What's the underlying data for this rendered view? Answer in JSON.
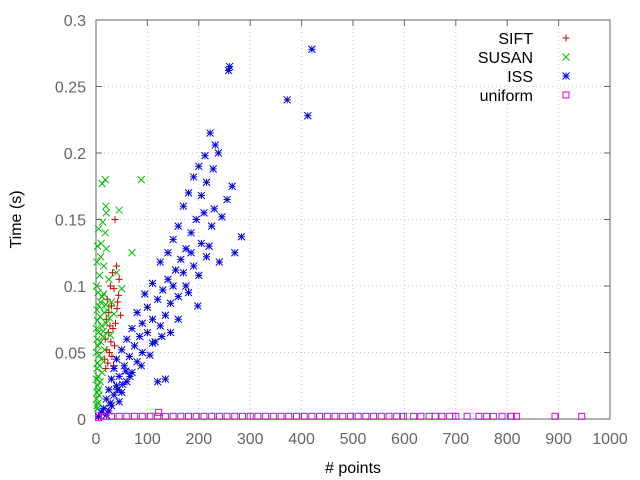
{
  "chart_data": {
    "type": "scatter",
    "xlabel": "# points",
    "ylabel": "Time (s)",
    "xlim": [
      0,
      1000
    ],
    "ylim": [
      0,
      0.3
    ],
    "xticks": [
      "0",
      "100",
      "200",
      "300",
      "400",
      "500",
      "600",
      "700",
      "800",
      "900",
      "1000"
    ],
    "yticks": [
      "0",
      "0.05",
      "0.1",
      "0.15",
      "0.2",
      "0.25",
      "0.3"
    ],
    "grid": true,
    "legend_position": "top-right",
    "series": [
      {
        "name": "SIFT",
        "marker": "plus",
        "color": "#d00000",
        "points": [
          [
            37,
            0.15
          ],
          [
            40,
            0.115
          ],
          [
            32,
            0.11
          ],
          [
            45,
            0.105
          ],
          [
            28,
            0.1
          ],
          [
            35,
            0.098
          ],
          [
            22,
            0.09
          ],
          [
            42,
            0.088
          ],
          [
            30,
            0.085
          ],
          [
            25,
            0.08
          ],
          [
            48,
            0.078
          ],
          [
            20,
            0.075
          ],
          [
            38,
            0.072
          ],
          [
            27,
            0.07
          ],
          [
            33,
            0.068
          ],
          [
            24,
            0.065
          ],
          [
            18,
            0.06
          ],
          [
            29,
            0.058
          ],
          [
            36,
            0.055
          ],
          [
            21,
            0.052
          ],
          [
            26,
            0.05
          ],
          [
            31,
            0.047
          ],
          [
            17,
            0.045
          ],
          [
            23,
            0.042
          ],
          [
            34,
            0.04
          ],
          [
            19,
            0.038
          ],
          [
            44,
            0.093
          ],
          [
            41,
            0.083
          ]
        ]
      },
      {
        "name": "SUSAN",
        "marker": "cross",
        "color": "#00c000",
        "points": [
          [
            88,
            0.18
          ],
          [
            18,
            0.18
          ],
          [
            12,
            0.177
          ],
          [
            19,
            0.16
          ],
          [
            45,
            0.157
          ],
          [
            20,
            0.155
          ],
          [
            13,
            0.148
          ],
          [
            5,
            0.143
          ],
          [
            10,
            0.132
          ],
          [
            3,
            0.13
          ],
          [
            18,
            0.14
          ],
          [
            20,
            0.128
          ],
          [
            70,
            0.125
          ],
          [
            9,
            0.122
          ],
          [
            2,
            0.118
          ],
          [
            15,
            0.115
          ],
          [
            40,
            0.11
          ],
          [
            7,
            0.108
          ],
          [
            25,
            0.105
          ],
          [
            1,
            0.1
          ],
          [
            50,
            0.098
          ],
          [
            4,
            0.095
          ],
          [
            12,
            0.092
          ],
          [
            30,
            0.088
          ],
          [
            6,
            0.085
          ],
          [
            2,
            0.082
          ],
          [
            16,
            0.08
          ],
          [
            8,
            0.077
          ],
          [
            3,
            0.074
          ],
          [
            20,
            0.072
          ],
          [
            11,
            0.07
          ],
          [
            1,
            0.068
          ],
          [
            5,
            0.065
          ],
          [
            14,
            0.062
          ],
          [
            2,
            0.06
          ],
          [
            9,
            0.058
          ],
          [
            4,
            0.055
          ],
          [
            17,
            0.052
          ],
          [
            1,
            0.05
          ],
          [
            6,
            0.048
          ],
          [
            10,
            0.045
          ],
          [
            3,
            0.042
          ],
          [
            7,
            0.04
          ],
          [
            2,
            0.038
          ],
          [
            12,
            0.035
          ],
          [
            4,
            0.032
          ],
          [
            1,
            0.03
          ],
          [
            8,
            0.028
          ],
          [
            3,
            0.025
          ],
          [
            5,
            0.022
          ],
          [
            2,
            0.02
          ],
          [
            6,
            0.018
          ],
          [
            1,
            0.015
          ],
          [
            4,
            0.012
          ],
          [
            2,
            0.01
          ],
          [
            3,
            0.008
          ],
          [
            22,
            0.082
          ],
          [
            26,
            0.076
          ],
          [
            14,
            0.066
          ],
          [
            35,
            0.079
          ],
          [
            28,
            0.063
          ],
          [
            9,
            0.088
          ],
          [
            15,
            0.094
          ],
          [
            19,
            0.086
          ]
        ]
      },
      {
        "name": "ISS",
        "marker": "star",
        "color": "#0000e0",
        "points": [
          [
            420,
            0.278
          ],
          [
            260,
            0.265
          ],
          [
            258,
            0.262
          ],
          [
            372,
            0.24
          ],
          [
            412,
            0.228
          ],
          [
            222,
            0.215
          ],
          [
            238,
            0.2
          ],
          [
            232,
            0.206
          ],
          [
            212,
            0.198
          ],
          [
            200,
            0.19
          ],
          [
            190,
            0.182
          ],
          [
            265,
            0.175
          ],
          [
            180,
            0.17
          ],
          [
            255,
            0.165
          ],
          [
            170,
            0.16
          ],
          [
            230,
            0.158
          ],
          [
            210,
            0.155
          ],
          [
            195,
            0.15
          ],
          [
            160,
            0.145
          ],
          [
            185,
            0.14
          ],
          [
            283,
            0.137
          ],
          [
            150,
            0.135
          ],
          [
            205,
            0.132
          ],
          [
            175,
            0.128
          ],
          [
            140,
            0.125
          ],
          [
            215,
            0.122
          ],
          [
            165,
            0.12
          ],
          [
            125,
            0.118
          ],
          [
            190,
            0.115
          ],
          [
            155,
            0.112
          ],
          [
            200,
            0.108
          ],
          [
            140,
            0.105
          ],
          [
            110,
            0.102
          ],
          [
            175,
            0.1
          ],
          [
            130,
            0.097
          ],
          [
            95,
            0.094
          ],
          [
            160,
            0.092
          ],
          [
            120,
            0.09
          ],
          [
            145,
            0.087
          ],
          [
            100,
            0.084
          ],
          [
            80,
            0.08
          ],
          [
            135,
            0.078
          ],
          [
            110,
            0.075
          ],
          [
            90,
            0.072
          ],
          [
            125,
            0.07
          ],
          [
            70,
            0.068
          ],
          [
            100,
            0.065
          ],
          [
            85,
            0.062
          ],
          [
            60,
            0.06
          ],
          [
            110,
            0.057
          ],
          [
            75,
            0.055
          ],
          [
            50,
            0.052
          ],
          [
            90,
            0.05
          ],
          [
            65,
            0.047
          ],
          [
            40,
            0.045
          ],
          [
            80,
            0.043
          ],
          [
            55,
            0.04
          ],
          [
            35,
            0.038
          ],
          [
            70,
            0.035
          ],
          [
            45,
            0.032
          ],
          [
            30,
            0.03
          ],
          [
            60,
            0.028
          ],
          [
            40,
            0.025
          ],
          [
            25,
            0.022
          ],
          [
            50,
            0.02
          ],
          [
            35,
            0.018
          ],
          [
            20,
            0.015
          ],
          [
            45,
            0.013
          ],
          [
            30,
            0.01
          ],
          [
            15,
            0.008
          ],
          [
            25,
            0.006
          ],
          [
            10,
            0.005
          ],
          [
            20,
            0.003
          ],
          [
            5,
            0.002
          ],
          [
            135,
            0.03
          ],
          [
            120,
            0.028
          ],
          [
            150,
            0.1
          ],
          [
            220,
            0.13
          ],
          [
            240,
            0.118
          ],
          [
            270,
            0.125
          ],
          [
            180,
            0.095
          ],
          [
            198,
            0.085
          ],
          [
            145,
            0.065
          ],
          [
            160,
            0.075
          ],
          [
            105,
            0.048
          ],
          [
            88,
            0.04
          ],
          [
            66,
            0.032
          ],
          [
            52,
            0.026
          ],
          [
            42,
            0.022
          ],
          [
            28,
            0.012
          ],
          [
            58,
            0.036
          ],
          [
            115,
            0.058
          ],
          [
            128,
            0.062
          ],
          [
            170,
            0.11
          ],
          [
            185,
            0.125
          ],
          [
            225,
            0.145
          ],
          [
            245,
            0.152
          ],
          [
            205,
            0.168
          ],
          [
            215,
            0.178
          ],
          [
            228,
            0.188
          ]
        ]
      },
      {
        "name": "uniform",
        "marker": "square",
        "color": "#e000e0",
        "points": [
          [
            945,
            0.002
          ],
          [
            893,
            0.002
          ],
          [
            818,
            0.002
          ],
          [
            808,
            0.002
          ],
          [
            790,
            0.002
          ],
          [
            773,
            0.002
          ],
          [
            760,
            0.002
          ],
          [
            745,
            0.002
          ],
          [
            722,
            0.002
          ],
          [
            700,
            0.002
          ],
          [
            688,
            0.002
          ],
          [
            673,
            0.002
          ],
          [
            660,
            0.002
          ],
          [
            648,
            0.002
          ],
          [
            632,
            0.002
          ],
          [
            618,
            0.002
          ],
          [
            598,
            0.002
          ],
          [
            585,
            0.002
          ],
          [
            570,
            0.002
          ],
          [
            555,
            0.002
          ],
          [
            540,
            0.002
          ],
          [
            525,
            0.002
          ],
          [
            510,
            0.002
          ],
          [
            495,
            0.002
          ],
          [
            480,
            0.002
          ],
          [
            465,
            0.002
          ],
          [
            450,
            0.002
          ],
          [
            435,
            0.002
          ],
          [
            420,
            0.002
          ],
          [
            405,
            0.002
          ],
          [
            390,
            0.002
          ],
          [
            375,
            0.002
          ],
          [
            360,
            0.002
          ],
          [
            345,
            0.002
          ],
          [
            330,
            0.002
          ],
          [
            315,
            0.002
          ],
          [
            300,
            0.002
          ],
          [
            285,
            0.002
          ],
          [
            270,
            0.002
          ],
          [
            255,
            0.002
          ],
          [
            240,
            0.002
          ],
          [
            225,
            0.002
          ],
          [
            210,
            0.002
          ],
          [
            195,
            0.002
          ],
          [
            180,
            0.002
          ],
          [
            165,
            0.002
          ],
          [
            150,
            0.002
          ],
          [
            135,
            0.002
          ],
          [
            122,
            0.005
          ],
          [
            120,
            0.002
          ],
          [
            105,
            0.002
          ],
          [
            90,
            0.002
          ],
          [
            75,
            0.002
          ],
          [
            60,
            0.002
          ],
          [
            45,
            0.002
          ],
          [
            30,
            0.002
          ],
          [
            15,
            0.002
          ],
          [
            5,
            0.001
          ]
        ]
      }
    ]
  }
}
